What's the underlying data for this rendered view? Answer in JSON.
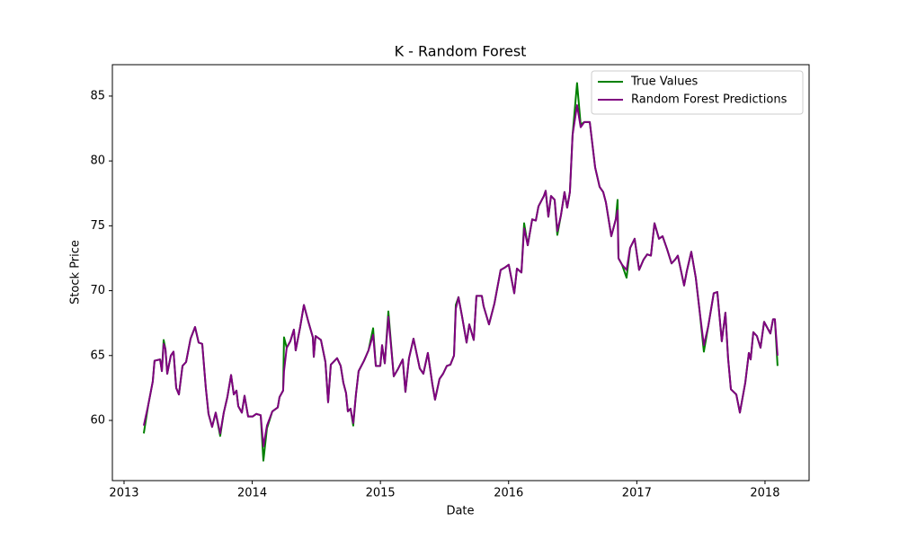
{
  "chart_data": {
    "type": "line",
    "title": "K - Random Forest",
    "x_label": "Date",
    "y_label": "Stock Price",
    "x": [
      2013.154,
      2013.189,
      2013.224,
      2013.238,
      2013.281,
      2013.295,
      2013.309,
      2013.323,
      2013.337,
      2013.365,
      2013.386,
      2013.407,
      2013.428,
      2013.456,
      2013.484,
      2013.519,
      2013.554,
      2013.582,
      2013.61,
      2013.638,
      2013.659,
      2013.687,
      2013.715,
      2013.75,
      2013.778,
      2013.806,
      2013.835,
      2013.856,
      2013.877,
      2013.891,
      2013.919,
      2013.94,
      2013.968,
      2014.003,
      2014.031,
      2014.066,
      2014.087,
      2014.115,
      2014.157,
      2014.199,
      2014.213,
      2014.241,
      2014.248,
      2014.269,
      2014.297,
      2014.325,
      2014.339,
      2014.374,
      2014.403,
      2014.438,
      2014.473,
      2014.48,
      2014.494,
      2014.536,
      2014.571,
      2014.592,
      2014.613,
      2014.662,
      2014.69,
      2014.711,
      2014.732,
      2014.746,
      2014.767,
      2014.788,
      2014.809,
      2014.83,
      2014.872,
      2014.907,
      2014.943,
      2014.964,
      2014.999,
      2015.013,
      2015.034,
      2015.062,
      2015.104,
      2015.139,
      2015.174,
      2015.195,
      2015.223,
      2015.258,
      2015.307,
      2015.335,
      2015.37,
      2015.405,
      2015.426,
      2015.461,
      2015.489,
      2015.518,
      2015.546,
      2015.574,
      2015.588,
      2015.609,
      2015.637,
      2015.672,
      2015.693,
      2015.728,
      2015.749,
      2015.791,
      2015.805,
      2015.847,
      2015.889,
      2015.938,
      2015.973,
      2016.001,
      2016.044,
      2016.065,
      2016.1,
      2016.121,
      2016.149,
      2016.184,
      2016.212,
      2016.233,
      2016.275,
      2016.289,
      2016.31,
      2016.331,
      2016.359,
      2016.38,
      2016.408,
      2016.436,
      2016.457,
      2016.478,
      2016.499,
      2016.534,
      2016.562,
      2016.591,
      2016.633,
      2016.675,
      2016.71,
      2016.738,
      2016.759,
      2016.801,
      2016.836,
      2016.85,
      2016.857,
      2016.885,
      2016.92,
      2016.948,
      2016.983,
      2017.018,
      2017.053,
      2017.081,
      2017.11,
      2017.138,
      2017.173,
      2017.201,
      2017.236,
      2017.271,
      2017.299,
      2017.32,
      2017.369,
      2017.39,
      2017.425,
      2017.46,
      2017.488,
      2017.523,
      2017.558,
      2017.6,
      2017.628,
      2017.663,
      2017.691,
      2017.712,
      2017.734,
      2017.776,
      2017.804,
      2017.846,
      2017.874,
      2017.888,
      2017.909,
      2017.937,
      2017.965,
      2017.993,
      2018.042,
      2018.063,
      2018.077,
      2018.098
    ],
    "series": [
      {
        "name": "True Values",
        "color": "#008000",
        "values": [
          59.0,
          61.2,
          63.0,
          64.6,
          64.7,
          63.8,
          66.2,
          65.5,
          63.6,
          65.0,
          65.3,
          62.5,
          62.0,
          64.2,
          64.5,
          66.3,
          67.2,
          66.0,
          65.9,
          62.5,
          60.5,
          59.5,
          60.6,
          58.8,
          60.6,
          61.8,
          63.5,
          62.0,
          62.3,
          61.1,
          60.6,
          61.9,
          60.3,
          60.3,
          60.5,
          60.4,
          56.9,
          59.4,
          60.7,
          61.0,
          61.8,
          62.3,
          66.4,
          65.6,
          66.1,
          67.0,
          65.4,
          67.2,
          68.9,
          67.6,
          66.4,
          64.9,
          66.5,
          66.2,
          64.5,
          61.4,
          64.3,
          64.8,
          64.2,
          62.9,
          62.1,
          60.7,
          60.9,
          59.6,
          62.0,
          63.8,
          64.6,
          65.4,
          67.1,
          64.2,
          64.2,
          65.8,
          64.4,
          68.4,
          63.4,
          64.0,
          64.7,
          62.2,
          64.8,
          66.3,
          64.0,
          63.6,
          65.2,
          62.8,
          61.6,
          63.2,
          63.6,
          64.2,
          64.3,
          65.0,
          68.9,
          69.5,
          68.0,
          66.0,
          67.4,
          66.2,
          69.6,
          69.6,
          68.8,
          67.4,
          69.0,
          71.6,
          71.8,
          72.0,
          69.8,
          71.7,
          71.4,
          75.2,
          73.5,
          75.5,
          75.4,
          76.5,
          77.3,
          77.7,
          75.7,
          77.3,
          77.0,
          74.3,
          75.8,
          77.6,
          76.4,
          77.6,
          82.0,
          86.0,
          82.8,
          83.0,
          83.0,
          79.5,
          78.0,
          77.6,
          76.8,
          74.2,
          75.5,
          77.0,
          72.5,
          72.0,
          71.0,
          73.3,
          74.0,
          71.6,
          72.4,
          72.8,
          72.7,
          75.2,
          74.0,
          74.2,
          73.2,
          72.1,
          72.4,
          72.7,
          70.4,
          71.5,
          73.0,
          71.0,
          68.6,
          65.3,
          67.3,
          69.8,
          69.9,
          66.1,
          68.3,
          64.8,
          62.4,
          62.0,
          60.6,
          62.9,
          65.2,
          64.7,
          66.8,
          66.5,
          65.6,
          67.6,
          66.7,
          67.8,
          67.8,
          64.2
        ]
      },
      {
        "name": "Random Forest Predictions",
        "color": "#800080",
        "values": [
          59.6,
          61.2,
          63.0,
          64.6,
          64.7,
          63.8,
          65.9,
          65.5,
          63.6,
          65.0,
          65.3,
          62.5,
          62.0,
          64.2,
          64.5,
          66.3,
          67.2,
          66.0,
          65.9,
          62.5,
          60.5,
          59.5,
          60.6,
          59.0,
          60.6,
          61.8,
          63.5,
          62.0,
          62.3,
          61.1,
          60.6,
          61.9,
          60.3,
          60.3,
          60.5,
          60.4,
          58.0,
          59.6,
          60.7,
          61.0,
          61.8,
          62.3,
          63.8,
          65.6,
          66.1,
          67.0,
          65.4,
          67.2,
          68.9,
          67.6,
          66.4,
          64.9,
          66.5,
          66.2,
          64.5,
          61.4,
          64.3,
          64.8,
          64.2,
          62.9,
          62.1,
          60.7,
          60.9,
          59.8,
          62.0,
          63.8,
          64.6,
          65.4,
          66.6,
          64.2,
          64.2,
          65.8,
          64.4,
          68.0,
          63.4,
          64.0,
          64.7,
          62.2,
          64.8,
          66.3,
          64.0,
          63.6,
          65.2,
          62.8,
          61.6,
          63.2,
          63.6,
          64.2,
          64.3,
          65.0,
          68.6,
          69.5,
          68.0,
          66.0,
          67.4,
          66.2,
          69.6,
          69.6,
          68.8,
          67.4,
          69.0,
          71.6,
          71.8,
          72.0,
          69.8,
          71.7,
          71.4,
          74.8,
          73.5,
          75.5,
          75.4,
          76.5,
          77.3,
          77.7,
          75.7,
          77.3,
          77.0,
          74.6,
          75.8,
          77.6,
          76.4,
          77.6,
          82.0,
          84.3,
          82.6,
          83.0,
          83.0,
          79.5,
          78.0,
          77.6,
          76.8,
          74.2,
          75.5,
          76.2,
          72.5,
          72.0,
          71.6,
          73.3,
          74.0,
          71.6,
          72.4,
          72.8,
          72.7,
          75.2,
          74.0,
          74.2,
          73.2,
          72.1,
          72.4,
          72.7,
          70.4,
          71.5,
          73.0,
          71.0,
          68.6,
          65.8,
          67.3,
          69.8,
          69.9,
          66.1,
          68.3,
          64.8,
          62.4,
          62.0,
          60.6,
          62.9,
          65.2,
          64.7,
          66.8,
          66.5,
          65.6,
          67.6,
          66.7,
          67.8,
          67.8,
          65.0
        ]
      }
    ],
    "xlim": [
      2012.909,
      2018.344
    ],
    "ylim": [
      55.36,
      87.42
    ],
    "xticks": [
      2013,
      2014,
      2015,
      2016,
      2017,
      2018
    ],
    "yticks": [
      60,
      65,
      70,
      75,
      80,
      85
    ],
    "legend": "upper right",
    "grid": false
  }
}
